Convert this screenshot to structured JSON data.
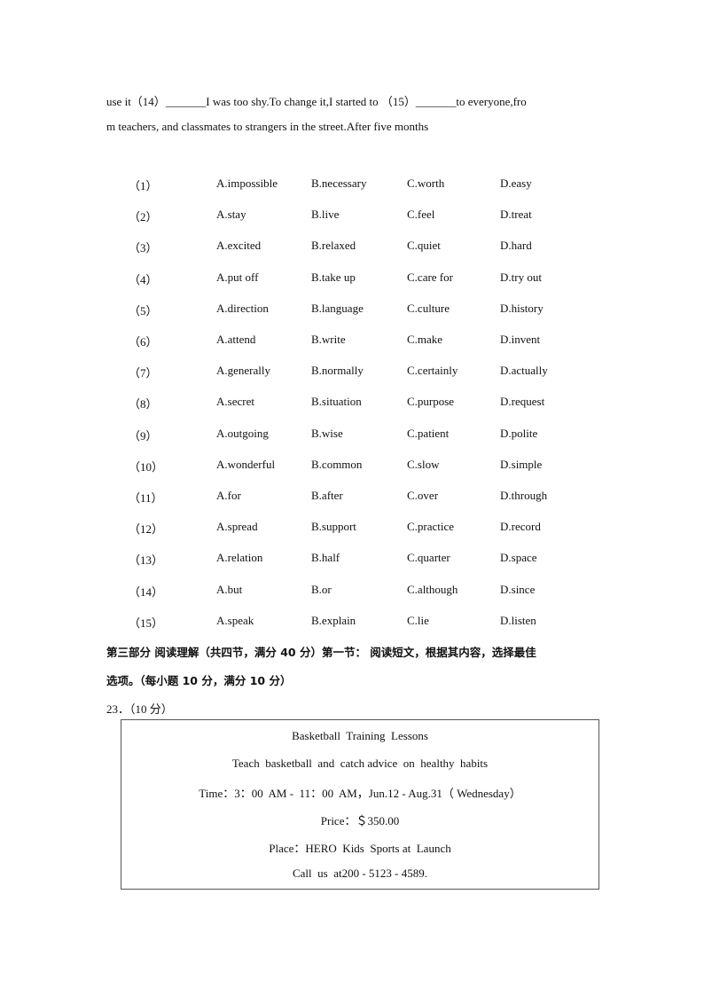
{
  "passage": {
    "line1": "use it（14）_______I was too shy.To change it,I started to （15）_______to everyone,fro",
    "line2": "m teachers, and classmates to strangers in the street.After five months"
  },
  "options": [
    {
      "num": "（1）",
      "a": "A.impossible",
      "b": "B.necessary",
      "c": "C.worth",
      "d": "D.easy"
    },
    {
      "num": "（2）",
      "a": "A.stay",
      "b": "B.live",
      "c": "C.feel",
      "d": "D.treat"
    },
    {
      "num": "（3）",
      "a": "A.excited",
      "b": "B.relaxed",
      "c": "C.quiet",
      "d": "D.hard"
    },
    {
      "num": "（4）",
      "a": "A.put off",
      "b": "B.take up",
      "c": "C.care for",
      "d": "D.try out"
    },
    {
      "num": "（5）",
      "a": "A.direction",
      "b": "B.language",
      "c": "C.culture",
      "d": "D.history"
    },
    {
      "num": "（6）",
      "a": "A.attend",
      "b": "B.write",
      "c": "C.make",
      "d": "D.invent"
    },
    {
      "num": "（7）",
      "a": "A.generally",
      "b": "B.normally",
      "c": "C.certainly",
      "d": "D.actually"
    },
    {
      "num": "（8）",
      "a": "A.secret",
      "b": "B.situation",
      "c": "C.purpose",
      "d": "D.request"
    },
    {
      "num": "（9）",
      "a": "A.outgoing",
      "b": "B.wise",
      "c": "C.patient",
      "d": "D.polite"
    },
    {
      "num": "（10）",
      "a": "A.wonderful",
      "b": "B.common",
      "c": "C.slow",
      "d": "D.simple"
    },
    {
      "num": "（11）",
      "a": "A.for",
      "b": "B.after",
      "c": "C.over",
      "d": "D.through"
    },
    {
      "num": "（12）",
      "a": "A.spread",
      "b": "B.support",
      "c": "C.practice",
      "d": "D.record"
    },
    {
      "num": "（13）",
      "a": "A.relation",
      "b": "B.half",
      "c": "C.quarter",
      "d": "D.space"
    },
    {
      "num": "（14）",
      "a": "A.but",
      "b": "B.or",
      "c": "C.although",
      "d": "D.since"
    },
    {
      "num": "（15）",
      "a": "A.speak",
      "b": "B.explain",
      "c": "C.lie",
      "d": "D.listen"
    }
  ],
  "section": {
    "heading1": "第三部分 阅读理解（共四节，满分 40 分）第一节： 阅读短文，根据其内容，选择最佳",
    "heading2": "选项。（每小题 10 分，满分 10 分）",
    "question": "23．（10 分）"
  },
  "ad": {
    "title": "Basketball  Training  Lessons",
    "subtitle": "Teach  basketball  and  catch advice  on  healthy  habits",
    "time": "Time：3：00  AM -  11：00  AM，Jun.12 - Aug.31（ Wednesday）",
    "price": "Price：＄350.00",
    "place": "Place：HERO  Kids  Sports at  Launch",
    "call": "Call  us  at200 - 5123 - 4589."
  }
}
